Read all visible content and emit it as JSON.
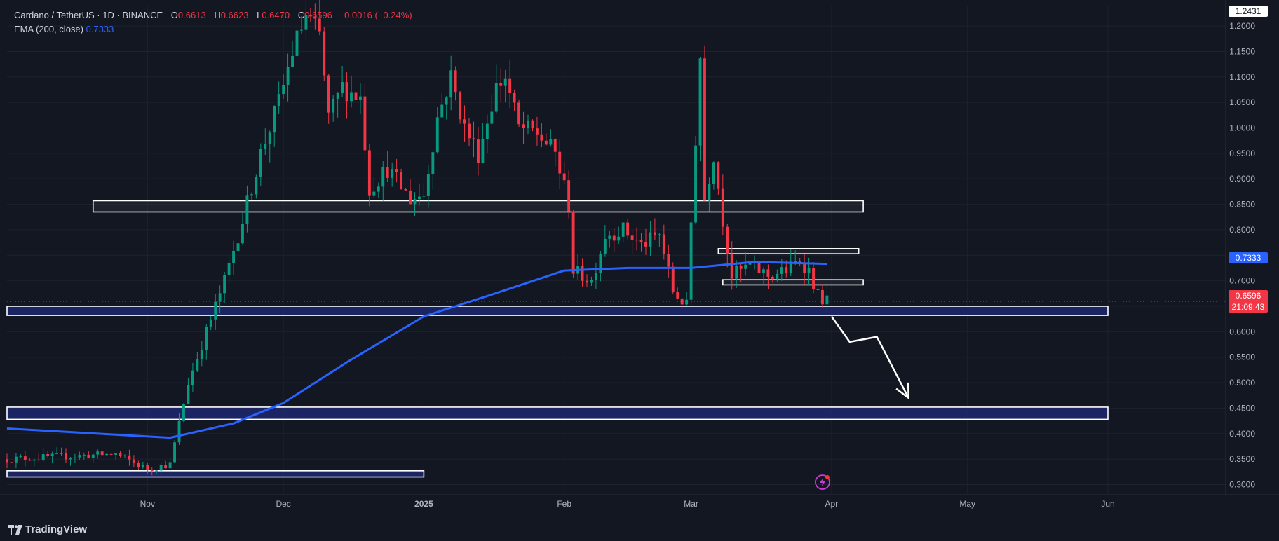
{
  "legend": {
    "symbol": "Cardano / TetherUS · 1D · BINANCE",
    "o_label": "O",
    "o_value": "0.6613",
    "h_label": "H",
    "h_value": "0.6623",
    "l_label": "L",
    "l_value": "0.6470",
    "c_label": "C",
    "c_value": "0.6596",
    "change": "−0.0016 (−0.24%)",
    "ema_label": "EMA (200, close)",
    "ema_value": "0.7333"
  },
  "price_tags": {
    "top": "1.2431",
    "ema": "0.7333",
    "last": "0.6596",
    "countdown": "21:09:43"
  },
  "colors": {
    "up": "#089981",
    "down": "#f23645",
    "ema": "#2962ff",
    "background": "#131722",
    "grid": "#1e222d"
  },
  "brand": "TradingView",
  "chart_data": {
    "type": "candlestick",
    "title": "Cardano / TetherUS · 1D · BINANCE",
    "ylim": [
      0.28,
      1.24
    ],
    "y_ticks": [
      "1.2000",
      "1.1500",
      "1.1000",
      "1.0500",
      "1.0000",
      "0.9500",
      "0.9000",
      "0.8500",
      "0.8000",
      "0.7500",
      "0.7000",
      "0.6500",
      "0.6000",
      "0.5500",
      "0.5000",
      "0.4500",
      "0.4000",
      "0.3500",
      "0.3000"
    ],
    "x_ticks": [
      "Nov",
      "Dec",
      "2025",
      "Feb",
      "Mar",
      "Apr",
      "May",
      "Jun"
    ],
    "key_points": [
      {
        "date": "2024-10-01",
        "price": 0.35
      },
      {
        "date": "2024-10-25",
        "price": 0.36
      },
      {
        "date": "2024-11-01",
        "price": 0.33
      },
      {
        "date": "2024-11-06",
        "price": 0.34
      },
      {
        "date": "2024-11-10",
        "price": 0.5
      },
      {
        "date": "2024-11-14",
        "price": 0.6
      },
      {
        "date": "2024-11-18",
        "price": 0.7
      },
      {
        "date": "2024-11-22",
        "price": 0.82
      },
      {
        "date": "2024-11-26",
        "price": 0.95
      },
      {
        "date": "2024-11-30",
        "price": 1.05
      },
      {
        "date": "2024-12-03",
        "price": 1.15
      },
      {
        "date": "2024-12-06",
        "price": 1.22
      },
      {
        "date": "2024-12-09",
        "price": 1.18
      },
      {
        "date": "2024-12-11",
        "price": 1.02
      },
      {
        "date": "2024-12-14",
        "price": 1.08
      },
      {
        "date": "2024-12-18",
        "price": 1.06
      },
      {
        "date": "2024-12-20",
        "price": 0.88
      },
      {
        "date": "2024-12-24",
        "price": 0.92
      },
      {
        "date": "2024-12-29",
        "price": 0.86
      },
      {
        "date": "2025-01-01",
        "price": 0.87
      },
      {
        "date": "2025-01-04",
        "price": 1.02
      },
      {
        "date": "2025-01-07",
        "price": 1.1
      },
      {
        "date": "2025-01-10",
        "price": 1.0
      },
      {
        "date": "2025-01-13",
        "price": 0.95
      },
      {
        "date": "2025-01-17",
        "price": 1.08
      },
      {
        "date": "2025-01-19",
        "price": 1.1
      },
      {
        "date": "2025-01-22",
        "price": 1.0
      },
      {
        "date": "2025-01-26",
        "price": 0.99
      },
      {
        "date": "2025-01-30",
        "price": 0.95
      },
      {
        "date": "2025-02-02",
        "price": 0.85
      },
      {
        "date": "2025-02-03",
        "price": 0.72
      },
      {
        "date": "2025-02-07",
        "price": 0.7
      },
      {
        "date": "2025-02-10",
        "price": 0.79
      },
      {
        "date": "2025-02-14",
        "price": 0.8
      },
      {
        "date": "2025-02-18",
        "price": 0.77
      },
      {
        "date": "2025-02-22",
        "price": 0.79
      },
      {
        "date": "2025-02-25",
        "price": 0.68
      },
      {
        "date": "2025-02-28",
        "price": 0.65
      },
      {
        "date": "2025-03-02",
        "price": 0.98
      },
      {
        "date": "2025-03-03",
        "price": 1.14
      },
      {
        "date": "2025-03-04",
        "price": 0.86
      },
      {
        "date": "2025-03-06",
        "price": 0.95
      },
      {
        "date": "2025-03-08",
        "price": 0.82
      },
      {
        "date": "2025-03-10",
        "price": 0.71
      },
      {
        "date": "2025-03-14",
        "price": 0.73
      },
      {
        "date": "2025-03-18",
        "price": 0.71
      },
      {
        "date": "2025-03-22",
        "price": 0.72
      },
      {
        "date": "2025-03-25",
        "price": 0.74
      },
      {
        "date": "2025-03-27",
        "price": 0.72
      },
      {
        "date": "2025-03-29",
        "price": 0.67
      },
      {
        "date": "2025-03-31",
        "price": 0.66
      }
    ],
    "ema_points": [
      {
        "date": "2024-10-01",
        "value": 0.41
      },
      {
        "date": "2024-11-06",
        "value": 0.392
      },
      {
        "date": "2024-11-20",
        "value": 0.42
      },
      {
        "date": "2024-12-01",
        "value": 0.46
      },
      {
        "date": "2024-12-15",
        "value": 0.54
      },
      {
        "date": "2025-01-01",
        "value": 0.63
      },
      {
        "date": "2025-01-15",
        "value": 0.67
      },
      {
        "date": "2025-02-01",
        "value": 0.72
      },
      {
        "date": "2025-02-15",
        "value": 0.725
      },
      {
        "date": "2025-03-01",
        "value": 0.725
      },
      {
        "date": "2025-03-15",
        "value": 0.737
      },
      {
        "date": "2025-03-31",
        "value": 0.733
      }
    ],
    "zones": [
      {
        "kind": "resistance",
        "from": "2024-10-20",
        "to": "2025-04-08",
        "low": 0.835,
        "high": 0.857
      },
      {
        "kind": "resistance",
        "from": "2025-03-07",
        "to": "2025-04-07",
        "low": 0.753,
        "high": 0.763
      },
      {
        "kind": "resistance",
        "from": "2025-03-08",
        "to": "2025-04-08",
        "low": 0.692,
        "high": 0.702
      },
      {
        "kind": "support",
        "from": "2024-10-01",
        "to": "2025-06-01",
        "low": 0.632,
        "high": 0.65
      },
      {
        "kind": "support",
        "from": "2024-10-01",
        "to": "2025-06-01",
        "low": 0.428,
        "high": 0.452
      },
      {
        "kind": "support",
        "from": "2024-10-01",
        "to": "2025-01-01",
        "low": 0.315,
        "high": 0.327
      }
    ],
    "projection_arrow": [
      {
        "date": "2025-04-01",
        "price": 0.63
      },
      {
        "date": "2025-04-05",
        "price": 0.58
      },
      {
        "date": "2025-04-11",
        "price": 0.59
      },
      {
        "date": "2025-04-18",
        "price": 0.47
      }
    ]
  }
}
